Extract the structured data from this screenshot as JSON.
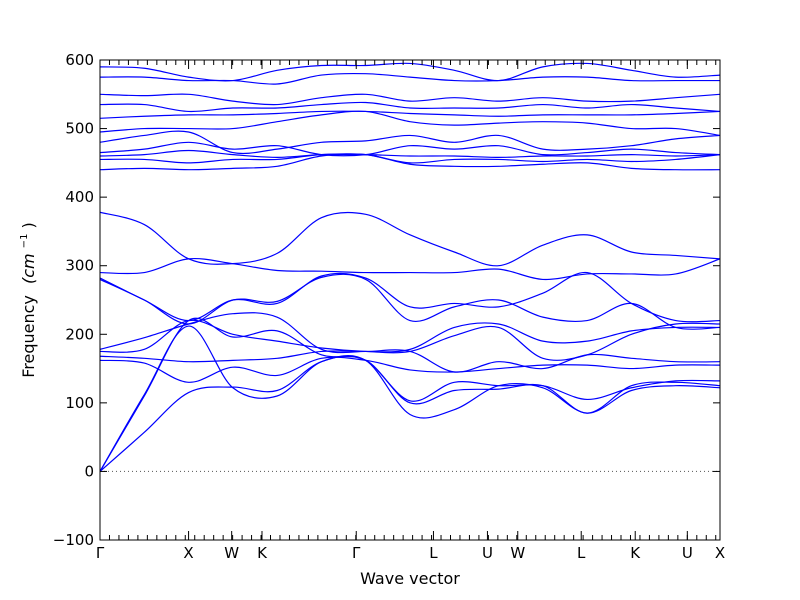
{
  "chart_data": {
    "type": "line",
    "xlabel": "Wave vector",
    "ylabel": "Frequency",
    "ylabel_unit": "(cm",
    "ylabel_unit_exp": "−1",
    "ylabel_unit_close": ")",
    "ylim": [
      -100,
      600
    ],
    "yticks": [
      -100,
      0,
      100,
      200,
      300,
      400,
      500,
      600
    ],
    "ytick_labels": [
      "−100",
      "0",
      "100",
      "200",
      "300",
      "400",
      "500",
      "600"
    ],
    "xlim": [
      0,
      6.545
    ],
    "kpoints": [
      {
        "label": "Γ",
        "x": 0
      },
      {
        "label": "X",
        "x": 0.935
      },
      {
        "label": "W",
        "x": 1.39
      },
      {
        "label": "K",
        "x": 1.71
      },
      {
        "label": "Γ",
        "x": 2.705
      },
      {
        "label": "L",
        "x": 3.52
      },
      {
        "label": "U",
        "x": 4.09
      },
      {
        "label": "W",
        "x": 4.41
      },
      {
        "label": "L",
        "x": 5.08
      },
      {
        "label": "K",
        "x": 5.65
      },
      {
        "label": "U",
        "x": 6.2
      },
      {
        "label": "X",
        "x": 6.545
      }
    ],
    "minor_ticks_per_unit": 10,
    "grid": false,
    "zero_line": true,
    "series": [
      {
        "y": [
          0,
          57,
          115,
          123,
          118,
          160,
          162,
          83,
          90,
          125,
          122,
          85,
          118,
          125,
          122
        ]
      },
      {
        "y": [
          0,
          112,
          212,
          122,
          110,
          160,
          162,
          100,
          118,
          120,
          125,
          85,
          125,
          130,
          125
        ]
      },
      {
        "y": [
          0,
          110,
          220,
          196,
          205,
          170,
          162,
          103,
          130,
          125,
          125,
          105,
          122,
          132,
          132
        ]
      },
      {
        "y": [
          162,
          158,
          130,
          152,
          140,
          165,
          162,
          148,
          145,
          150,
          155,
          155,
          150,
          155,
          155
        ]
      },
      {
        "y": [
          168,
          165,
          160,
          162,
          165,
          175,
          175,
          175,
          145,
          160,
          150,
          170,
          165,
          160,
          160
        ]
      },
      {
        "y": [
          175,
          178,
          220,
          200,
          190,
          180,
          175,
          175,
          198,
          210,
          165,
          170,
          200,
          215,
          215
        ]
      },
      {
        "y": [
          178,
          195,
          215,
          230,
          225,
          178,
          175,
          178,
          210,
          215,
          190,
          190,
          205,
          210,
          210
        ]
      },
      {
        "y": [
          280,
          250,
          215,
          250,
          248,
          283,
          280,
          220,
          240,
          250,
          225,
          220,
          245,
          210,
          210
        ]
      },
      {
        "y": [
          282,
          250,
          220,
          250,
          245,
          285,
          282,
          240,
          245,
          240,
          260,
          290,
          245,
          220,
          220
        ]
      },
      {
        "y": [
          290,
          290,
          310,
          303,
          293,
          292,
          290,
          290,
          290,
          295,
          280,
          288,
          288,
          288,
          310
        ]
      },
      {
        "y": [
          378,
          360,
          310,
          303,
          318,
          370,
          375,
          345,
          320,
          300,
          330,
          345,
          320,
          315,
          310
        ]
      },
      {
        "y": [
          440,
          442,
          440,
          442,
          445,
          460,
          462,
          448,
          445,
          445,
          448,
          450,
          442,
          440,
          440
        ]
      },
      {
        "y": [
          455,
          455,
          450,
          455,
          455,
          462,
          462,
          450,
          455,
          455,
          452,
          455,
          452,
          455,
          462
        ]
      },
      {
        "y": [
          460,
          462,
          468,
          462,
          458,
          462,
          462,
          460,
          460,
          458,
          460,
          460,
          462,
          460,
          462
        ]
      },
      {
        "y": [
          465,
          470,
          480,
          470,
          475,
          462,
          462,
          475,
          470,
          475,
          462,
          465,
          470,
          465,
          462
        ]
      },
      {
        "y": [
          480,
          490,
          495,
          465,
          470,
          480,
          482,
          490,
          480,
          490,
          470,
          470,
          475,
          485,
          490
        ]
      },
      {
        "y": [
          495,
          500,
          500,
          500,
          510,
          520,
          525,
          510,
          505,
          508,
          510,
          508,
          500,
          500,
          490
        ]
      },
      {
        "y": [
          515,
          518,
          520,
          520,
          522,
          525,
          525,
          522,
          520,
          518,
          520,
          520,
          520,
          522,
          525
        ]
      },
      {
        "y": [
          535,
          535,
          525,
          530,
          530,
          535,
          538,
          530,
          530,
          530,
          535,
          530,
          535,
          530,
          525
        ]
      },
      {
        "y": [
          550,
          548,
          550,
          540,
          535,
          545,
          550,
          540,
          545,
          540,
          545,
          540,
          540,
          545,
          550
        ]
      },
      {
        "y": [
          575,
          575,
          570,
          570,
          565,
          578,
          580,
          575,
          570,
          570,
          575,
          575,
          570,
          570,
          570
        ]
      },
      {
        "y": [
          590,
          588,
          575,
          570,
          585,
          592,
          592,
          595,
          585,
          570,
          590,
          595,
          585,
          575,
          578
        ]
      }
    ]
  }
}
